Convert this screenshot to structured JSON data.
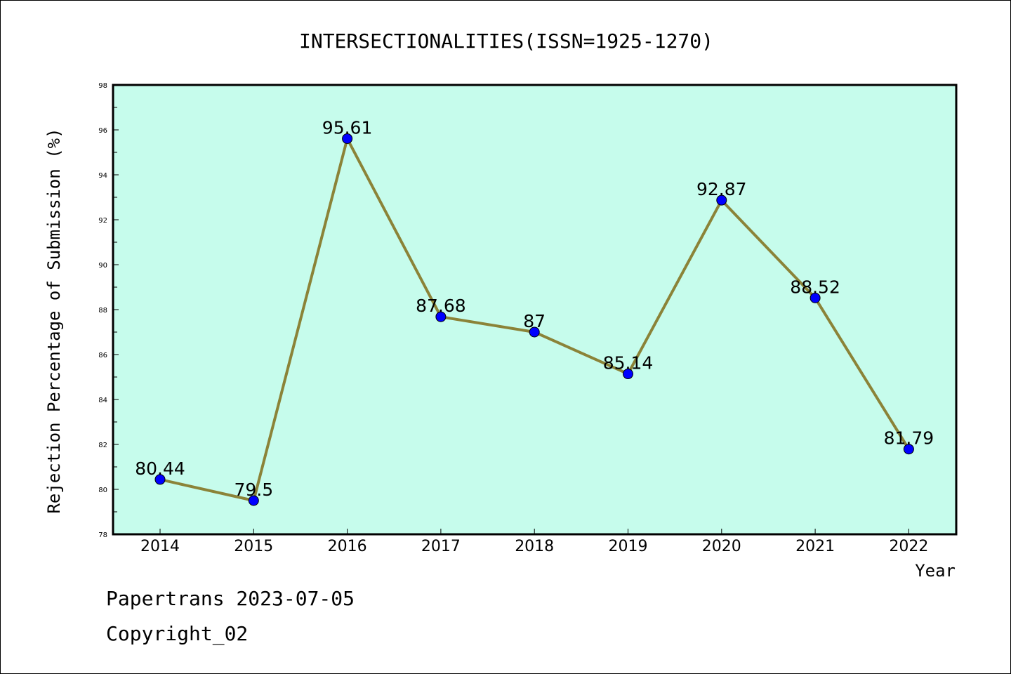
{
  "footer": {
    "line1": "Papertrans 2023-07-05",
    "line2": "Copyright_02"
  },
  "colors": {
    "plot_background": "#c6fcec",
    "line": "#8b8338",
    "marker": "#0000ff",
    "axis": "#000000"
  },
  "chart_data": {
    "type": "line",
    "title": "INTERSECTIONALITIES(ISSN=1925-1270)",
    "xlabel": "Year",
    "ylabel": "Rejection Percentage of Submission (%)",
    "categories": [
      "2014",
      "2015",
      "2016",
      "2017",
      "2018",
      "2019",
      "2020",
      "2021",
      "2022"
    ],
    "series": [
      {
        "values": [
          80.44,
          79.5,
          95.61,
          87.68,
          87,
          85.14,
          92.87,
          88.52,
          81.79
        ],
        "labels": [
          "80.44",
          "79.5",
          "95.61",
          "87.68",
          "87",
          "85.14",
          "92.87",
          "88.52",
          "81.79"
        ]
      }
    ],
    "ylim": [
      78,
      98
    ],
    "yticks": [
      "78",
      "80",
      "82",
      "84",
      "86",
      "88",
      "90",
      "92",
      "94",
      "96",
      "98"
    ],
    "grid": false,
    "legend": "none"
  }
}
